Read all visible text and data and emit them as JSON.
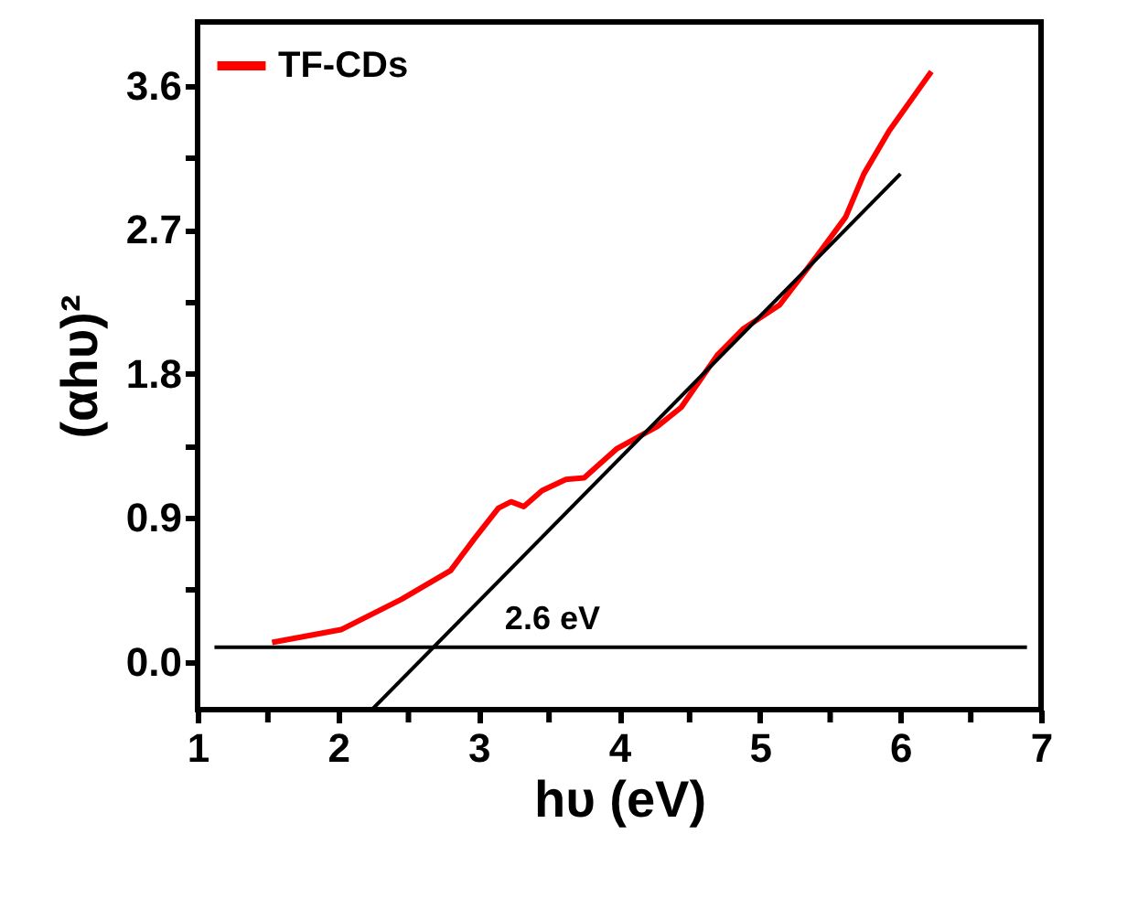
{
  "chart_data": {
    "type": "line",
    "xlabel": "hυ (eV)",
    "ylabel": "(αhυ)²",
    "xlim": [
      1,
      7
    ],
    "ylim": [
      -0.3,
      4.0
    ],
    "xticks": [
      1,
      {
        "value": 1.5,
        "label": null
      },
      2,
      {
        "value": 2.5,
        "label": null
      },
      3,
      {
        "value": 3.5,
        "label": null
      },
      4,
      {
        "value": 4.5,
        "label": null
      },
      5,
      {
        "value": 5.5,
        "label": null
      },
      6,
      {
        "value": 6.5,
        "label": null
      },
      7
    ],
    "yticks": [
      {
        "value": 0,
        "label": "0.0"
      },
      {
        "value": 0.45,
        "label": null
      },
      0.9,
      {
        "value": 1.35,
        "label": null
      },
      1.8,
      {
        "value": 2.25,
        "label": null
      },
      2.7,
      {
        "value": 3.15,
        "label": null
      },
      3.6
    ],
    "series": [
      {
        "name": "TF-CDs",
        "color": "#ff0000",
        "x": [
          1.53,
          2.02,
          2.45,
          2.8,
          2.97,
          3.14,
          3.23,
          3.32,
          3.45,
          3.62,
          3.75,
          3.98,
          4.27,
          4.44,
          4.7,
          4.88,
          5.14,
          5.4,
          5.61,
          5.74,
          5.92,
          6.22
        ],
        "values": [
          0.12,
          0.2,
          0.39,
          0.57,
          0.77,
          0.96,
          1.0,
          0.97,
          1.07,
          1.14,
          1.15,
          1.33,
          1.47,
          1.59,
          1.92,
          2.08,
          2.23,
          2.53,
          2.78,
          3.05,
          3.32,
          3.69
        ]
      },
      {
        "type": "line",
        "color": "#000000",
        "x": [
          2.24,
          6.0
        ],
        "values": [
          -0.3,
          3.05
        ]
      },
      {
        "type": "line",
        "color": "#000000",
        "x": [
          1.12,
          6.9
        ],
        "values": [
          0.09,
          0.09
        ]
      }
    ],
    "annotations": [
      {
        "text": "2.6 eV",
        "x": 2.6,
        "y": 0.09
      }
    ],
    "legend": "top left",
    "grid": false,
    "marker": "none",
    "line_style": "solid"
  }
}
